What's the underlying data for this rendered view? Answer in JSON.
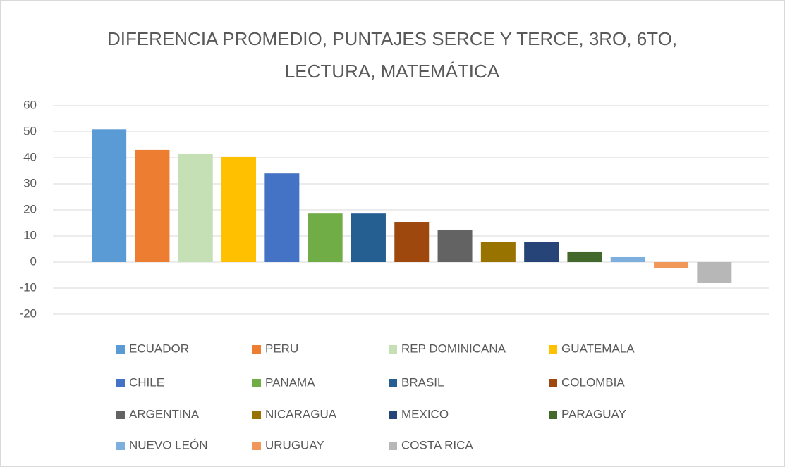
{
  "chart_data": {
    "type": "bar",
    "title": "DIFERENCIA PROMEDIO, PUNTAJES SERCE Y TERCE, 3RO, 6TO, LECTURA, MATEMÁTICA",
    "series": [
      {
        "name": "ECUADOR",
        "color": "#5b9bd5",
        "values": [
          51
        ]
      },
      {
        "name": "PERU",
        "color": "#ed7d31",
        "values": [
          43
        ]
      },
      {
        "name": "REP DOMINICANA",
        "color": "#c5e0b4",
        "values": [
          41.6
        ]
      },
      {
        "name": "GUATEMALA",
        "color": "#ffc000",
        "values": [
          40.3
        ]
      },
      {
        "name": "CHILE",
        "color": "#4472c4",
        "values": [
          34
        ]
      },
      {
        "name": "PANAMA",
        "color": "#70ad47",
        "values": [
          18.6
        ]
      },
      {
        "name": "BRASIL",
        "color": "#255e91",
        "values": [
          18.6
        ]
      },
      {
        "name": "COLOMBIA",
        "color": "#9e480e",
        "values": [
          15.4
        ]
      },
      {
        "name": "ARGENTINA",
        "color": "#636363",
        "values": [
          12.4
        ]
      },
      {
        "name": "NICARAGUA",
        "color": "#997300",
        "values": [
          7.6
        ]
      },
      {
        "name": "MEXICO",
        "color": "#264478",
        "values": [
          7.6
        ]
      },
      {
        "name": "PARAGUAY",
        "color": "#43682b",
        "values": [
          3.8
        ]
      },
      {
        "name": "NUEVO LEÓN",
        "color": "#7cafdd",
        "values": [
          1.9
        ]
      },
      {
        "name": "URUGUAY",
        "color": "#f1975a",
        "values": [
          -2.2
        ]
      },
      {
        "name": "COSTA RICA",
        "color": "#b7b7b7",
        "values": [
          -8.1
        ]
      }
    ],
    "ylim": [
      -20,
      60
    ],
    "yticks": [
      -20,
      -10,
      0,
      10,
      20,
      30,
      40,
      50,
      60
    ],
    "grid": true,
    "legend": "bottom"
  }
}
